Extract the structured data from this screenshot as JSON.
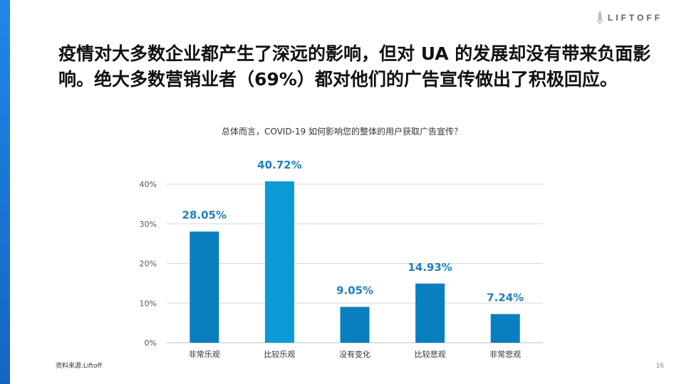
{
  "headline": "疫情对大多数企业都产生了深远的影响，但对 UA 的发展却没有带来负面影响。绝大多数营销业者（69%）都对他们的广告宣传做出了积极回应。",
  "brand": {
    "name": "LIFTOFF",
    "icon": "rocket-icon"
  },
  "source": "资料来源:Liftoff",
  "page_number": "16",
  "chart_data": {
    "type": "bar",
    "title": "总体而言，COVID-19 如何影响您的整体的用户获取广告宣传？",
    "categories": [
      "非常乐观",
      "比较乐观",
      "没有变化",
      "比较悲观",
      "非常悲观"
    ],
    "values": [
      28.05,
      40.72,
      9.05,
      14.93,
      7.24
    ],
    "value_labels": [
      "28.05%",
      "40.72%",
      "9.05%",
      "14.93%",
      "7.24%"
    ],
    "yticks": [
      0,
      10,
      20,
      30,
      40
    ],
    "ytick_labels": [
      "0%",
      "10%",
      "20%",
      "30%",
      "40%"
    ],
    "ylim": [
      0,
      40
    ],
    "grid": true,
    "colors": {
      "bar": "#0a7fc0",
      "highlight_bar": "#0a9ad6",
      "label": "#1f7fc0",
      "grid": "#d9d9d9",
      "tick": "#555555"
    },
    "highlight_index": 1
  }
}
